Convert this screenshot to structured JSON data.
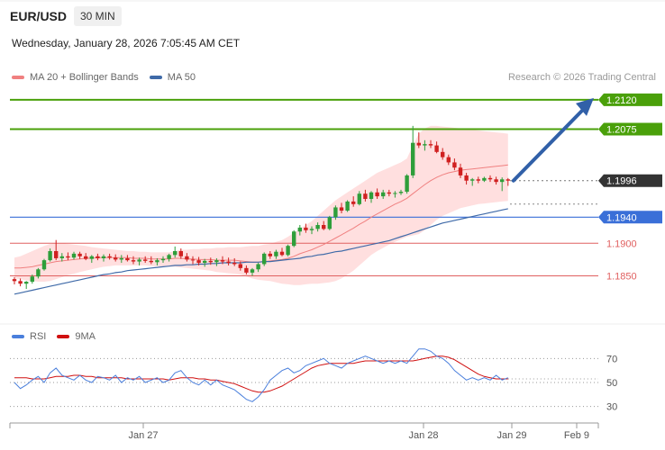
{
  "header": {
    "symbol": "EUR/USD",
    "timeframe": "30 MIN",
    "datetime": "Wednesday, January 28, 2026 7:05:45 AM CET"
  },
  "legend": {
    "ma20": "MA 20 + Bollinger Bands",
    "ma50": "MA 50",
    "credit": "Research © 2026 Trading Central",
    "rsi": "RSI",
    "ma9": "9MA"
  },
  "colors": {
    "resistance": "#4aa00a",
    "support_blue": "#3a6fd8",
    "support_red": "#e06060",
    "current": "#333333",
    "bullish": "#2e9e3a",
    "bearish": "#d02020",
    "band": "#ffd9d9",
    "ma20": "#f08080",
    "ma50": "#3f6aa8",
    "arrow": "#3160a8",
    "rsi": "#4a7fdc",
    "ma9": "#d01010"
  },
  "chart_data": [
    {
      "type": "candlestick",
      "ylim": [
        1.179,
        1.2135
      ],
      "x_ticks": [
        "Jan 27",
        "Jan 28",
        "Jan 29",
        "Feb 9"
      ],
      "levels": [
        {
          "value": 1.212,
          "label": "1.2120",
          "kind": "resistance"
        },
        {
          "value": 1.2075,
          "label": "1.2075",
          "kind": "resistance"
        },
        {
          "value": 1.1996,
          "label": "1.1996",
          "kind": "current"
        },
        {
          "value": 1.194,
          "label": "1.1940",
          "kind": "support_blue"
        },
        {
          "value": 1.19,
          "label": "1.1900",
          "kind": "support_red"
        },
        {
          "value": 1.185,
          "label": "1.1850",
          "kind": "support_red"
        }
      ],
      "candles": [
        [
          1.1845,
          1.1848,
          1.1837,
          1.1842
        ],
        [
          1.1842,
          1.1846,
          1.1834,
          1.1838
        ],
        [
          1.1838,
          1.1842,
          1.183,
          1.1841
        ],
        [
          1.1841,
          1.1852,
          1.1838,
          1.1849
        ],
        [
          1.1849,
          1.1862,
          1.1846,
          1.186
        ],
        [
          1.186,
          1.1876,
          1.1858,
          1.1874
        ],
        [
          1.1874,
          1.1892,
          1.1872,
          1.1888
        ],
        [
          1.1888,
          1.1905,
          1.1874,
          1.1877
        ],
        [
          1.1877,
          1.1885,
          1.1872,
          1.188
        ],
        [
          1.188,
          1.1886,
          1.1874,
          1.1878
        ],
        [
          1.1878,
          1.1887,
          1.1875,
          1.1884
        ],
        [
          1.1884,
          1.1887,
          1.1876,
          1.188
        ],
        [
          1.188,
          1.1885,
          1.1874,
          1.1876
        ],
        [
          1.1876,
          1.1882,
          1.187,
          1.188
        ],
        [
          1.188,
          1.1884,
          1.1874,
          1.1877
        ],
        [
          1.1877,
          1.1883,
          1.1872,
          1.188
        ],
        [
          1.188,
          1.1884,
          1.1875,
          1.1878
        ],
        [
          1.1878,
          1.1883,
          1.1872,
          1.1875
        ],
        [
          1.1875,
          1.1882,
          1.187,
          1.1877
        ],
        [
          1.1877,
          1.1882,
          1.1872,
          1.1874
        ],
        [
          1.1874,
          1.188,
          1.1868,
          1.1872
        ],
        [
          1.1872,
          1.1878,
          1.1866,
          1.1875
        ],
        [
          1.1875,
          1.188,
          1.187,
          1.1873
        ],
        [
          1.1873,
          1.188,
          1.1868,
          1.1871
        ],
        [
          1.1871,
          1.1877,
          1.1866,
          1.1874
        ],
        [
          1.1874,
          1.188,
          1.187,
          1.1876
        ],
        [
          1.1876,
          1.1884,
          1.1872,
          1.1882
        ],
        [
          1.1882,
          1.1895,
          1.1878,
          1.1888
        ],
        [
          1.1888,
          1.1892,
          1.1876,
          1.188
        ],
        [
          1.188,
          1.1885,
          1.1872,
          1.1875
        ],
        [
          1.1875,
          1.188,
          1.1868,
          1.1874
        ],
        [
          1.1874,
          1.1879,
          1.1866,
          1.187
        ],
        [
          1.187,
          1.1876,
          1.1864,
          1.1873
        ],
        [
          1.1873,
          1.1878,
          1.1867,
          1.1871
        ],
        [
          1.1871,
          1.1877,
          1.1865,
          1.1874
        ],
        [
          1.1874,
          1.188,
          1.1868,
          1.1872
        ],
        [
          1.1872,
          1.1878,
          1.1866,
          1.187
        ],
        [
          1.187,
          1.1877,
          1.1865,
          1.1868
        ],
        [
          1.1868,
          1.1872,
          1.1858,
          1.1862
        ],
        [
          1.1862,
          1.1866,
          1.1852,
          1.1855
        ],
        [
          1.1855,
          1.1862,
          1.185,
          1.186
        ],
        [
          1.186,
          1.187,
          1.1856,
          1.1868
        ],
        [
          1.1868,
          1.1886,
          1.1865,
          1.1884
        ],
        [
          1.1884,
          1.1888,
          1.1876,
          1.188
        ],
        [
          1.188,
          1.189,
          1.1876,
          1.1887
        ],
        [
          1.1887,
          1.1893,
          1.188,
          1.1882
        ],
        [
          1.1882,
          1.1898,
          1.188,
          1.1896
        ],
        [
          1.1896,
          1.192,
          1.1894,
          1.1918
        ],
        [
          1.1918,
          1.1928,
          1.1912,
          1.1924
        ],
        [
          1.1924,
          1.193,
          1.1916,
          1.192
        ],
        [
          1.192,
          1.1926,
          1.1914,
          1.1922
        ],
        [
          1.1922,
          1.1932,
          1.1918,
          1.1928
        ],
        [
          1.1928,
          1.1934,
          1.192,
          1.1922
        ],
        [
          1.1922,
          1.1942,
          1.192,
          1.194
        ],
        [
          1.194,
          1.1958,
          1.1936,
          1.1955
        ],
        [
          1.1955,
          1.1962,
          1.1946,
          1.195
        ],
        [
          1.195,
          1.1966,
          1.1948,
          1.1964
        ],
        [
          1.1964,
          1.1972,
          1.1956,
          1.196
        ],
        [
          1.196,
          1.198,
          1.1958,
          1.1976
        ],
        [
          1.1976,
          1.1982,
          1.1964,
          1.1968
        ],
        [
          1.1968,
          1.198,
          1.1962,
          1.1978
        ],
        [
          1.1978,
          1.1984,
          1.1968,
          1.1972
        ],
        [
          1.1972,
          1.1982,
          1.1968,
          1.1978
        ],
        [
          1.1978,
          1.1982,
          1.1972,
          1.1976
        ],
        [
          1.1976,
          1.198,
          1.197,
          1.1977
        ],
        [
          1.1977,
          1.1982,
          1.1974,
          1.1979
        ],
        [
          1.1979,
          1.2006,
          1.1976,
          1.2004
        ],
        [
          1.2004,
          1.208,
          1.2,
          1.2054
        ],
        [
          1.2054,
          1.207,
          1.2046,
          1.205
        ],
        [
          1.205,
          1.2058,
          1.2042,
          1.2052
        ],
        [
          1.2052,
          1.2058,
          1.2046,
          1.205
        ],
        [
          1.205,
          1.2056,
          1.2038,
          1.204
        ],
        [
          1.204,
          1.2046,
          1.2028,
          1.2032
        ],
        [
          1.2032,
          1.2036,
          1.202,
          1.2024
        ],
        [
          1.2024,
          1.203,
          1.2012,
          1.2016
        ],
        [
          1.2016,
          1.2022,
          1.2,
          1.2004
        ],
        [
          1.2004,
          1.2008,
          1.199,
          1.1996
        ],
        [
          1.1996,
          1.2,
          1.1988,
          1.1998
        ],
        [
          1.1998,
          1.2002,
          1.1992,
          1.1996
        ],
        [
          1.1996,
          1.2002,
          1.1994,
          1.2
        ],
        [
          1.2,
          1.2004,
          1.1994,
          1.1998
        ],
        [
          1.1998,
          1.2002,
          1.199,
          1.1994
        ],
        [
          1.1994,
          1.2001,
          1.198,
          1.1998
        ],
        [
          1.1998,
          1.2,
          1.1988,
          1.1996
        ]
      ],
      "ma20": [
        1.1862,
        1.1862,
        1.1863,
        1.1864,
        1.1866,
        1.1868,
        1.187,
        1.1872,
        1.1873,
        1.1874,
        1.1875,
        1.1876,
        1.1877,
        1.1877,
        1.1878,
        1.1878,
        1.1878,
        1.1878,
        1.1878,
        1.1878,
        1.1877,
        1.1877,
        1.1877,
        1.1876,
        1.1876,
        1.1876,
        1.1876,
        1.1877,
        1.1877,
        1.1876,
        1.1876,
        1.1875,
        1.1875,
        1.1875,
        1.1874,
        1.1874,
        1.1874,
        1.1874,
        1.1873,
        1.1872,
        1.1871,
        1.1871,
        1.1872,
        1.1873,
        1.1874,
        1.1875,
        1.1877,
        1.188,
        1.1884,
        1.1887,
        1.189,
        1.1894,
        1.1898,
        1.1903,
        1.1908,
        1.1913,
        1.1918,
        1.1923,
        1.1929,
        1.1934,
        1.194,
        1.1945,
        1.195,
        1.1955,
        1.196,
        1.1964,
        1.1969,
        1.1976,
        1.1983,
        1.199,
        1.1996,
        1.2001,
        1.2005,
        1.2008,
        1.201,
        1.2012,
        1.2013,
        1.2014,
        1.2015,
        1.2016,
        1.2017,
        1.2018,
        1.2019,
        1.202
      ],
      "bb_upper": [
        1.1878,
        1.188,
        1.1884,
        1.1888,
        1.1892,
        1.1896,
        1.1899,
        1.19,
        1.19,
        1.1899,
        1.1898,
        1.1897,
        1.1896,
        1.1894,
        1.1893,
        1.1892,
        1.1891,
        1.189,
        1.1889,
        1.1888,
        1.1888,
        1.1887,
        1.1887,
        1.1886,
        1.1886,
        1.1886,
        1.1886,
        1.1888,
        1.189,
        1.189,
        1.1891,
        1.1891,
        1.1892,
        1.1892,
        1.1893,
        1.1893,
        1.1894,
        1.1894,
        1.1894,
        1.1895,
        1.1896,
        1.1896,
        1.1898,
        1.1899,
        1.1902,
        1.1905,
        1.191,
        1.1916,
        1.1922,
        1.1928,
        1.1934,
        1.1942,
        1.195,
        1.1958,
        1.1966,
        1.1972,
        1.1978,
        1.1984,
        1.199,
        1.1996,
        1.2002,
        1.2008,
        1.2012,
        1.2016,
        1.202,
        1.2024,
        1.203,
        1.205,
        1.2068,
        1.2076,
        1.208,
        1.208,
        1.2079,
        1.2078,
        1.2077,
        1.2076,
        1.2075,
        1.2074,
        1.2073,
        1.2072,
        1.2071,
        1.207,
        1.2069,
        1.2068
      ],
      "bb_lower": [
        1.1846,
        1.1845,
        1.1843,
        1.1842,
        1.1841,
        1.1841,
        1.1842,
        1.1845,
        1.1848,
        1.1851,
        1.1853,
        1.1856,
        1.1858,
        1.186,
        1.1862,
        1.1864,
        1.1865,
        1.1866,
        1.1866,
        1.1866,
        1.1866,
        1.1866,
        1.1866,
        1.1865,
        1.1865,
        1.1864,
        1.1864,
        1.1864,
        1.1863,
        1.1862,
        1.1861,
        1.186,
        1.1859,
        1.1858,
        1.1856,
        1.1855,
        1.1854,
        1.1853,
        1.1852,
        1.1849,
        1.1846,
        1.1844,
        1.1843,
        1.1842,
        1.184,
        1.1838,
        1.1837,
        1.1836,
        1.1836,
        1.1837,
        1.1838,
        1.1838,
        1.1839,
        1.184,
        1.1842,
        1.1846,
        1.1852,
        1.1858,
        1.1866,
        1.1874,
        1.1882,
        1.1888,
        1.1893,
        1.1898,
        1.1902,
        1.1906,
        1.191,
        1.1912,
        1.1914,
        1.192,
        1.1928,
        1.1936,
        1.1942,
        1.1946,
        1.195,
        1.1954,
        1.1956,
        1.1958,
        1.196,
        1.1961,
        1.1962,
        1.1963,
        1.1964,
        1.1965
      ],
      "ma50": [
        1.1822,
        1.1824,
        1.1826,
        1.1828,
        1.183,
        1.1832,
        1.1834,
        1.1836,
        1.1838,
        1.184,
        1.1842,
        1.1844,
        1.1846,
        1.1848,
        1.185,
        1.1852,
        1.1853,
        1.1855,
        1.1856,
        1.1858,
        1.1859,
        1.186,
        1.1861,
        1.1862,
        1.1863,
        1.1864,
        1.1865,
        1.1866,
        1.1866,
        1.1867,
        1.1867,
        1.1868,
        1.1868,
        1.1869,
        1.1869,
        1.187,
        1.187,
        1.187,
        1.187,
        1.1871,
        1.1871,
        1.1871,
        1.1872,
        1.1872,
        1.1873,
        1.1874,
        1.1875,
        1.1876,
        1.1877,
        1.1879,
        1.188,
        1.1882,
        1.1883,
        1.1885,
        1.1887,
        1.1888,
        1.189,
        1.1892,
        1.1894,
        1.1896,
        1.1898,
        1.19,
        1.1902,
        1.1904,
        1.1907,
        1.191,
        1.1913,
        1.1916,
        1.1919,
        1.1922,
        1.1925,
        1.1928,
        1.1931,
        1.1933,
        1.1935,
        1.1937,
        1.1939,
        1.1941,
        1.1943,
        1.1945,
        1.1947,
        1.1949,
        1.1951,
        1.1953
      ],
      "projection": {
        "from": 1.1996,
        "to": 1.212
      }
    },
    {
      "type": "line",
      "ylim": [
        20,
        80
      ],
      "y_ticks": [
        70,
        50,
        30
      ],
      "rsi": [
        50,
        45,
        48,
        52,
        55,
        50,
        58,
        62,
        56,
        54,
        52,
        56,
        52,
        50,
        55,
        54,
        52,
        56,
        50,
        54,
        52,
        55,
        50,
        52,
        54,
        50,
        52,
        58,
        60,
        54,
        50,
        48,
        52,
        48,
        52,
        48,
        46,
        44,
        40,
        36,
        34,
        38,
        44,
        52,
        56,
        60,
        62,
        58,
        60,
        64,
        66,
        68,
        70,
        66,
        64,
        62,
        66,
        68,
        70,
        72,
        70,
        68,
        66,
        68,
        66,
        68,
        66,
        72,
        78,
        78,
        76,
        72,
        70,
        66,
        60,
        56,
        52,
        54,
        52,
        54,
        52,
        56,
        52,
        54
      ],
      "ma9": [
        54,
        54,
        54,
        53,
        53,
        53,
        54,
        55,
        55,
        55,
        56,
        56,
        55,
        55,
        54,
        54,
        54,
        54,
        54,
        53,
        53,
        53,
        53,
        53,
        53,
        53,
        52,
        53,
        54,
        54,
        54,
        53,
        53,
        52,
        52,
        51,
        50,
        49,
        47,
        45,
        43,
        42,
        42,
        43,
        45,
        47,
        50,
        53,
        56,
        59,
        62,
        64,
        65,
        66,
        66,
        66,
        66,
        66,
        67,
        68,
        68,
        68,
        68,
        68,
        68,
        68,
        68,
        68,
        69,
        70,
        71,
        72,
        72,
        71,
        69,
        66,
        63,
        60,
        57,
        55,
        54,
        53,
        53,
        53
      ]
    }
  ]
}
